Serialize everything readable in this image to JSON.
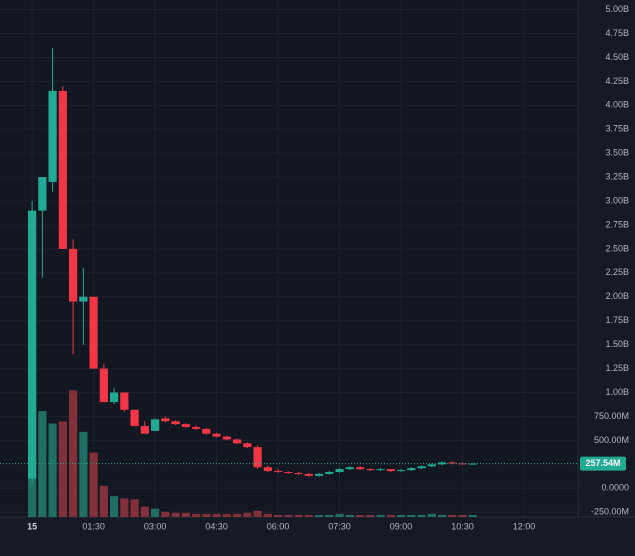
{
  "chart_data": {
    "type": "candlestick",
    "x": [
      0,
      15,
      30,
      45,
      60,
      75,
      90,
      105,
      120,
      135,
      150,
      165,
      180,
      195,
      210,
      225,
      240,
      255,
      270,
      285,
      300,
      315,
      330,
      345,
      360,
      375,
      390,
      405,
      420,
      435,
      450,
      465,
      480,
      495,
      510,
      525,
      540,
      555,
      570,
      585,
      600,
      615,
      630,
      645
    ],
    "open": [
      100,
      2900,
      3200,
      4150,
      2500,
      1950,
      2000,
      1250,
      900,
      1000,
      820,
      650,
      600,
      730,
      700,
      670,
      640,
      620,
      570,
      540,
      510,
      470,
      430,
      220,
      180,
      170,
      160,
      150,
      130,
      150,
      170,
      200,
      220,
      200,
      190,
      200,
      180,
      190,
      210,
      230,
      250,
      270,
      260,
      255
    ],
    "high": [
      3000,
      3250,
      4600,
      4200,
      2600,
      2300,
      2000,
      1300,
      1050,
      1000,
      820,
      700,
      730,
      750,
      710,
      680,
      660,
      630,
      580,
      550,
      520,
      480,
      450,
      240,
      200,
      180,
      170,
      160,
      160,
      180,
      210,
      230,
      230,
      210,
      210,
      200,
      200,
      220,
      240,
      260,
      280,
      280,
      270,
      262
    ],
    "low": [
      50,
      2200,
      3100,
      2500,
      1400,
      1500,
      1250,
      900,
      880,
      800,
      650,
      570,
      600,
      690,
      660,
      630,
      610,
      560,
      530,
      500,
      460,
      420,
      200,
      170,
      160,
      150,
      140,
      120,
      120,
      140,
      160,
      190,
      190,
      180,
      180,
      170,
      170,
      180,
      200,
      220,
      240,
      250,
      250,
      250
    ],
    "close": [
      2900,
      3250,
      4150,
      2500,
      1950,
      2000,
      1250,
      900,
      1000,
      820,
      650,
      570,
      720,
      700,
      670,
      640,
      620,
      570,
      540,
      510,
      470,
      430,
      220,
      180,
      170,
      160,
      150,
      130,
      150,
      170,
      200,
      220,
      200,
      190,
      200,
      180,
      190,
      210,
      230,
      250,
      270,
      260,
      255,
      257.54
    ],
    "volume": [
      130,
      102,
      90,
      92,
      122,
      82,
      62,
      30,
      20,
      18,
      17,
      10,
      8,
      5,
      4,
      4,
      3,
      3,
      3,
      3,
      3,
      4,
      6,
      3,
      2,
      2,
      2,
      2,
      2,
      2,
      3,
      2,
      2,
      2,
      2,
      2,
      2,
      2,
      2,
      3,
      2,
      2,
      2,
      2
    ],
    "up_color": "#22ab94",
    "down_color": "#f23645",
    "up_volume_color": "#1f6f64",
    "down_volume_color": "#82303a",
    "xlim": [
      -47,
      799
    ],
    "xticks": [
      {
        "value": 0,
        "label": "15"
      },
      {
        "value": 90,
        "label": "01:30"
      },
      {
        "value": 180,
        "label": "03:00"
      },
      {
        "value": 270,
        "label": "04:30"
      },
      {
        "value": 360,
        "label": "06:00"
      },
      {
        "value": 450,
        "label": "07:30"
      },
      {
        "value": 540,
        "label": "09:00"
      },
      {
        "value": 630,
        "label": "10:30"
      },
      {
        "value": 720,
        "label": "12:00"
      }
    ],
    "ylim": [
      -300,
      5100
    ],
    "yticks": [
      {
        "value": 5000,
        "label": "5.00B"
      },
      {
        "value": 4750,
        "label": "4.75B"
      },
      {
        "value": 4500,
        "label": "4.50B"
      },
      {
        "value": 4250,
        "label": "4.25B"
      },
      {
        "value": 4000,
        "label": "4.00B"
      },
      {
        "value": 3750,
        "label": "3.75B"
      },
      {
        "value": 3500,
        "label": "3.50B"
      },
      {
        "value": 3250,
        "label": "3.25B"
      },
      {
        "value": 3000,
        "label": "3.00B"
      },
      {
        "value": 2750,
        "label": "2.75B"
      },
      {
        "value": 2500,
        "label": "2.50B"
      },
      {
        "value": 2250,
        "label": "2.25B"
      },
      {
        "value": 2000,
        "label": "2.00B"
      },
      {
        "value": 1750,
        "label": "1.75B"
      },
      {
        "value": 1500,
        "label": "1.50B"
      },
      {
        "value": 1250,
        "label": "1.25B"
      },
      {
        "value": 1000,
        "label": "1.00B"
      },
      {
        "value": 750,
        "label": "750.00M"
      },
      {
        "value": 500,
        "label": "500.00M"
      },
      {
        "value": 0,
        "label": "0.0000"
      },
      {
        "value": -250,
        "label": "-250.00M"
      }
    ],
    "last_price": {
      "value": 257.54,
      "label": "257.54M"
    },
    "grid": true
  }
}
